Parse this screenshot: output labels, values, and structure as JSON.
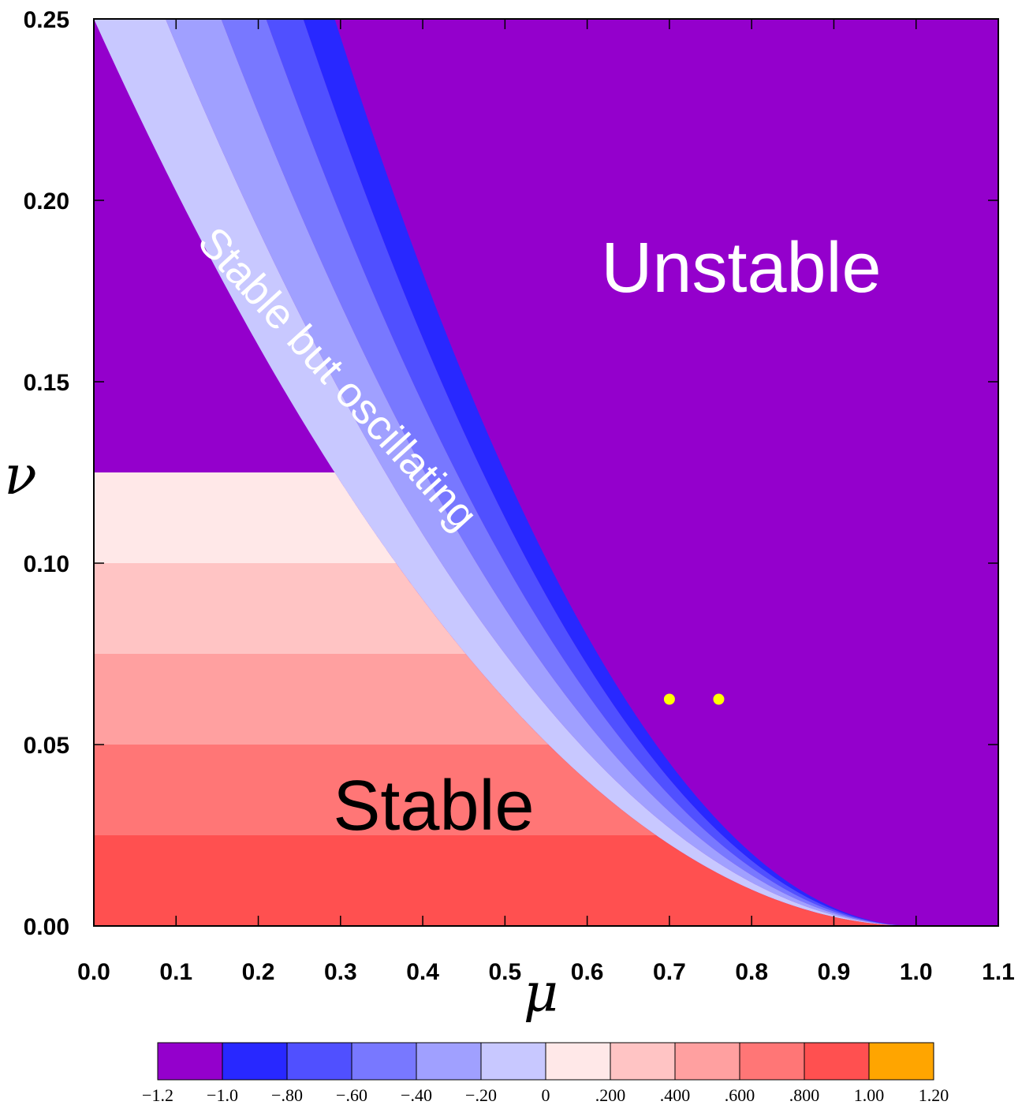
{
  "chart_data": {
    "type": "heatmap",
    "title": "",
    "xlabel": "μ",
    "ylabel": "ν",
    "xlim": [
      0.0,
      1.1
    ],
    "ylim": [
      0.0,
      0.25
    ],
    "x_ticks": [
      "0.0",
      "0.1",
      "0.2",
      "0.3",
      "0.4",
      "0.5",
      "0.6",
      "0.7",
      "0.8",
      "0.9",
      "1.0",
      "1.1"
    ],
    "y_ticks": [
      "0.00",
      "0.05",
      "0.10",
      "0.15",
      "0.20",
      "0.25"
    ],
    "region_labels": {
      "unstable": "Unstable",
      "oscillating": "Stable but oscillating",
      "stable": "Stable"
    },
    "stability_boundary": "ν = (1 − μ)² / 4",
    "points": [
      {
        "x": 0.7,
        "y": 0.0625,
        "color": "#ffff00"
      },
      {
        "x": 0.76,
        "y": 0.0625,
        "color": "#ffff00"
      }
    ],
    "colorbar": {
      "levels": [
        -1.2,
        -1.0,
        -0.8,
        -0.6,
        -0.4,
        -0.2,
        0,
        0.2,
        0.4,
        0.6,
        0.8,
        1.0,
        1.2
      ],
      "labels": [
        "−1.2",
        "−1.0",
        "−.80",
        "−.60",
        "−.40",
        "−.20",
        "0",
        ".200",
        ".400",
        ".600",
        ".800",
        "1.00",
        "1.20"
      ],
      "colors": [
        "#9400cc",
        "#2828ff",
        "#5050ff",
        "#7878ff",
        "#a0a0ff",
        "#c8c8ff",
        "#ffe8e8",
        "#ffc4c4",
        "#ffa0a0",
        "#ff7676",
        "#ff5050",
        "#ffa500"
      ]
    },
    "grid": false,
    "legend": "colorbar-bottom"
  }
}
